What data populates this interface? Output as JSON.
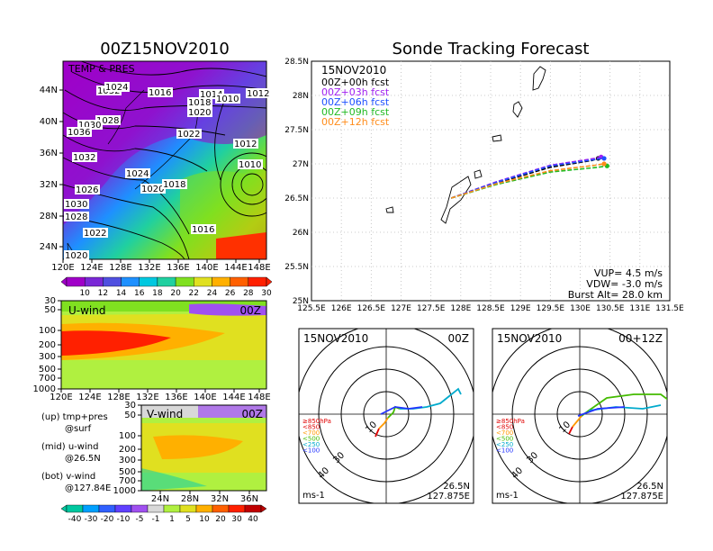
{
  "title_left": "00Z15NOV2010",
  "title_right": "Sonde Tracking Forecast",
  "colors": {
    "forecast_series": [
      "#000000",
      "#a020f0",
      "#1e50ff",
      "#22bb22",
      "#ff8c1a"
    ],
    "hodo_levels": [
      "#e00000",
      "#ff9900",
      "#44bb00",
      "#00aacc",
      "#2233ff"
    ]
  },
  "map_panel": {
    "label": "TEMP & PRES",
    "lon_ticks": [
      "120E",
      "124E",
      "128E",
      "132E",
      "136E",
      "140E",
      "144E",
      "148E"
    ],
    "lat_ticks": [
      "24N",
      "28N",
      "32N",
      "36N",
      "40N",
      "44N"
    ],
    "isobar_labels": [
      "1036",
      "1032",
      "1024",
      "1016",
      "1014",
      "1010",
      "1012",
      "1018",
      "1020",
      "1028",
      "1030",
      "1036",
      "1022",
      "1012",
      "1010",
      "1032",
      "1024",
      "1026",
      "1020",
      "1018",
      "1030",
      "1028",
      "1016",
      "1022",
      "1020"
    ],
    "colorbar_labels": [
      "10",
      "12",
      "14",
      "16",
      "18",
      "20",
      "22",
      "24",
      "26",
      "28",
      "30"
    ],
    "colorbar_colors": [
      "#a000c8",
      "#7a28d6",
      "#5050e0",
      "#1e90ff",
      "#00c8e0",
      "#20d0a0",
      "#80e020",
      "#e0e020",
      "#ffb000",
      "#ff6000",
      "#ff2000"
    ]
  },
  "uwind_panel": {
    "label": "U-wind",
    "time": "00Z",
    "p_ticks": [
      "30",
      "50",
      "100",
      "200",
      "300",
      "500",
      "700",
      "1000"
    ],
    "lon_ticks": [
      "120E",
      "124E",
      "128E",
      "132E",
      "136E",
      "140E",
      "144E",
      "148E"
    ]
  },
  "vwind_panel": {
    "label": "V-wind",
    "time": "00Z",
    "p_ticks": [
      "30",
      "50",
      "100",
      "200",
      "300",
      "500",
      "700",
      "1000"
    ],
    "lat_ticks": [
      "24N",
      "28N",
      "32N",
      "36N"
    ],
    "colorbar_labels": [
      "-40",
      "-30",
      "-20",
      "-10",
      "-5",
      "-1",
      "1",
      "5",
      "10",
      "20",
      "30",
      "40"
    ],
    "colorbar_colors": [
      "#00c8a0",
      "#00a0ff",
      "#3060ff",
      "#6040ff",
      "#a050f0",
      "#d8d8d8",
      "#b0f040",
      "#e0e020",
      "#ffb000",
      "#ff6000",
      "#ff2000",
      "#c00000"
    ]
  },
  "legend_text": {
    "up": "(up) tmp+pres",
    "up_sub": "@surf",
    "mid": "(mid) u-wind",
    "mid_sub": "@26.5N",
    "bot": "(bot) v-wind",
    "bot_sub": "@127.84E"
  },
  "track_panel": {
    "date": "15NOV2010",
    "series_labels": [
      "00Z+00h fcst",
      "00Z+03h fcst",
      "00Z+06h fcst",
      "00Z+09h fcst",
      "00Z+12h fcst"
    ],
    "lon_ticks": [
      "125.5E",
      "126E",
      "126.5E",
      "127E",
      "127.5E",
      "128E",
      "128.5E",
      "129E",
      "129.5E",
      "130E",
      "130.5E",
      "131E",
      "131.5E"
    ],
    "lat_ticks": [
      "25N",
      "25.5N",
      "26N",
      "26.5N",
      "27N",
      "27.5N",
      "28N",
      "28.5N"
    ],
    "vup": "VUP= 4.5 m/s",
    "vdw": "VDW= -3.0 m/s",
    "burst": "Burst Alt= 28.0 km"
  },
  "chart_data": [
    {
      "type": "line",
      "title": "Sonde Tracking Forecast",
      "xlim": [
        125.5,
        131.5
      ],
      "ylim": [
        25,
        28.5
      ],
      "series": [
        {
          "name": "00Z+00h fcst",
          "x": [
            127.84,
            128.6,
            129.5,
            130.2,
            130.3
          ],
          "y": [
            26.5,
            26.72,
            26.95,
            27.05,
            27.08
          ]
        },
        {
          "name": "00Z+03h fcst",
          "x": [
            127.84,
            128.6,
            129.5,
            130.25,
            130.35
          ],
          "y": [
            26.5,
            26.74,
            26.98,
            27.08,
            27.1
          ]
        },
        {
          "name": "00Z+06h fcst",
          "x": [
            127.84,
            128.6,
            129.5,
            130.3,
            130.4
          ],
          "y": [
            26.5,
            26.73,
            26.97,
            27.07,
            27.08
          ]
        },
        {
          "name": "00Z+09h fcst",
          "x": [
            127.84,
            128.6,
            129.5,
            130.3,
            130.45
          ],
          "y": [
            26.5,
            26.7,
            26.88,
            26.95,
            26.97
          ]
        },
        {
          "name": "00Z+12h fcst",
          "x": [
            127.84,
            128.6,
            129.5,
            130.25,
            130.4
          ],
          "y": [
            26.5,
            26.71,
            26.9,
            26.98,
            27.0
          ]
        }
      ]
    }
  ],
  "hodo_left": {
    "date": "15NOV2010",
    "time": "00Z",
    "level_labels": [
      "≥850hPa",
      "<850",
      "<700",
      "<500",
      "<250",
      "<100"
    ],
    "ring_labels": [
      "10",
      "30",
      "40"
    ],
    "units": "ms-1",
    "lat": "26.5N",
    "lon": "127.875E"
  },
  "hodo_right": {
    "date": "15NOV2010",
    "time": "00+12Z",
    "level_labels": [
      "≥850hPa",
      "<850",
      "<700",
      "<500",
      "<250",
      "<100"
    ],
    "ring_labels": [
      "10",
      "30",
      "40"
    ],
    "units": "ms-1",
    "lat": "26.5N",
    "lon": "127.875E"
  }
}
